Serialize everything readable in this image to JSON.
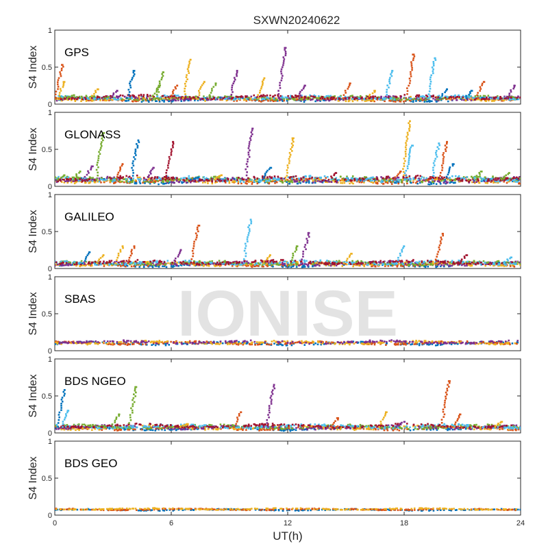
{
  "figure": {
    "title": "SXWN20240622",
    "xlabel": "UT(h)",
    "watermark": "IONISE",
    "colors": [
      "#0072BD",
      "#D95319",
      "#EDB120",
      "#7E2F8E",
      "#77AC30",
      "#4DBEEE",
      "#A2142F"
    ],
    "watermark_color": "#e3e3e3"
  },
  "chart_data": [
    {
      "type": "scatter",
      "panel_label": "GPS",
      "ylabel": "S4 Index",
      "xlim": [
        0,
        24
      ],
      "ylim": [
        0,
        1
      ],
      "yticks": [
        "0",
        "0.5",
        "1"
      ],
      "xticks": [],
      "baseline": 0.08,
      "noise": 0.03,
      "series_count": 7,
      "spikes": [
        {
          "x": 0.4,
          "y": 0.53,
          "c": 1
        },
        {
          "x": 0.5,
          "y": 0.3,
          "c": 2
        },
        {
          "x": 1.0,
          "y": 0.12,
          "c": 4
        },
        {
          "x": 2.2,
          "y": 0.2,
          "c": 2
        },
        {
          "x": 3.2,
          "y": 0.18,
          "c": 3
        },
        {
          "x": 4.1,
          "y": 0.45,
          "c": 0
        },
        {
          "x": 5.4,
          "y": 0.25,
          "c": 4
        },
        {
          "x": 5.6,
          "y": 0.43,
          "c": 4
        },
        {
          "x": 6.3,
          "y": 0.25,
          "c": 1
        },
        {
          "x": 7.0,
          "y": 0.6,
          "c": 2
        },
        {
          "x": 7.7,
          "y": 0.3,
          "c": 2
        },
        {
          "x": 8.3,
          "y": 0.28,
          "c": 4
        },
        {
          "x": 9.4,
          "y": 0.45,
          "c": 3
        },
        {
          "x": 10.8,
          "y": 0.35,
          "c": 2
        },
        {
          "x": 11.9,
          "y": 0.76,
          "c": 3
        },
        {
          "x": 12.9,
          "y": 0.25,
          "c": 3
        },
        {
          "x": 15.2,
          "y": 0.28,
          "c": 1
        },
        {
          "x": 16.5,
          "y": 0.18,
          "c": 2
        },
        {
          "x": 17.4,
          "y": 0.45,
          "c": 5
        },
        {
          "x": 18.5,
          "y": 0.67,
          "c": 1
        },
        {
          "x": 19.6,
          "y": 0.62,
          "c": 5
        },
        {
          "x": 20.2,
          "y": 0.2,
          "c": 0
        },
        {
          "x": 21.5,
          "y": 0.18,
          "c": 0
        },
        {
          "x": 22.1,
          "y": 0.3,
          "c": 1
        },
        {
          "x": 23.7,
          "y": 0.25,
          "c": 3
        }
      ]
    },
    {
      "type": "scatter",
      "panel_label": "GLONASS",
      "ylabel": "S4 Index",
      "xlim": [
        0,
        24
      ],
      "ylim": [
        0,
        1
      ],
      "yticks": [
        "0",
        "0.5",
        "1"
      ],
      "xticks": [],
      "baseline": 0.09,
      "noise": 0.04,
      "series_count": 7,
      "spikes": [
        {
          "x": 0.5,
          "y": 0.15,
          "c": 4
        },
        {
          "x": 1.3,
          "y": 0.2,
          "c": 4
        },
        {
          "x": 1.9,
          "y": 0.27,
          "c": 3
        },
        {
          "x": 2.5,
          "y": 0.72,
          "c": 4
        },
        {
          "x": 3.5,
          "y": 0.3,
          "c": 1
        },
        {
          "x": 4.3,
          "y": 0.62,
          "c": 0
        },
        {
          "x": 5.1,
          "y": 0.25,
          "c": 3
        },
        {
          "x": 6.1,
          "y": 0.6,
          "c": 6
        },
        {
          "x": 7.4,
          "y": 0.12,
          "c": 0
        },
        {
          "x": 8.6,
          "y": 0.15,
          "c": 2
        },
        {
          "x": 10.2,
          "y": 0.78,
          "c": 3
        },
        {
          "x": 11.1,
          "y": 0.25,
          "c": 0
        },
        {
          "x": 12.3,
          "y": 0.65,
          "c": 2
        },
        {
          "x": 14.5,
          "y": 0.18,
          "c": 6
        },
        {
          "x": 16.4,
          "y": 0.12,
          "c": 5
        },
        {
          "x": 17.8,
          "y": 0.2,
          "c": 1
        },
        {
          "x": 18.3,
          "y": 0.88,
          "c": 2
        },
        {
          "x": 18.4,
          "y": 0.55,
          "c": 5
        },
        {
          "x": 19.8,
          "y": 0.58,
          "c": 5
        },
        {
          "x": 20.2,
          "y": 0.6,
          "c": 1
        },
        {
          "x": 20.5,
          "y": 0.3,
          "c": 0
        },
        {
          "x": 22.0,
          "y": 0.2,
          "c": 4
        },
        {
          "x": 23.4,
          "y": 0.18,
          "c": 4
        }
      ]
    },
    {
      "type": "scatter",
      "panel_label": "GALILEO",
      "ylabel": "S4 Index",
      "xlim": [
        0,
        24
      ],
      "ylim": [
        0,
        1
      ],
      "yticks": [
        "0",
        "0.5",
        "1"
      ],
      "xticks": [],
      "baseline": 0.07,
      "noise": 0.03,
      "series_count": 7,
      "spikes": [
        {
          "x": 1.8,
          "y": 0.22,
          "c": 0
        },
        {
          "x": 2.5,
          "y": 0.18,
          "c": 2
        },
        {
          "x": 3.5,
          "y": 0.3,
          "c": 2
        },
        {
          "x": 4.1,
          "y": 0.3,
          "c": 1
        },
        {
          "x": 6.5,
          "y": 0.25,
          "c": 3
        },
        {
          "x": 7.4,
          "y": 0.58,
          "c": 1
        },
        {
          "x": 10.1,
          "y": 0.66,
          "c": 5
        },
        {
          "x": 11.1,
          "y": 0.18,
          "c": 2
        },
        {
          "x": 12.5,
          "y": 0.3,
          "c": 4
        },
        {
          "x": 13.1,
          "y": 0.48,
          "c": 3
        },
        {
          "x": 15.3,
          "y": 0.2,
          "c": 2
        },
        {
          "x": 18.0,
          "y": 0.3,
          "c": 5
        },
        {
          "x": 20.0,
          "y": 0.47,
          "c": 1
        },
        {
          "x": 21.2,
          "y": 0.18,
          "c": 6
        },
        {
          "x": 23.5,
          "y": 0.15,
          "c": 5
        }
      ]
    },
    {
      "type": "scatter",
      "panel_label": "SBAS",
      "ylabel": "S4 Index",
      "xlim": [
        0,
        24
      ],
      "ylim": [
        0,
        1
      ],
      "yticks": [
        "0",
        "0.5",
        "1"
      ],
      "xticks": [],
      "baseline": 0.11,
      "noise": 0.025,
      "series_count": 4,
      "spikes": []
    },
    {
      "type": "scatter",
      "panel_label": "BDS NGEO",
      "ylabel": "S4 Index",
      "xlim": [
        0,
        24
      ],
      "ylim": [
        0,
        1
      ],
      "yticks": [
        "0",
        "0.5",
        "1"
      ],
      "xticks": [],
      "baseline": 0.08,
      "noise": 0.03,
      "series_count": 7,
      "spikes": [
        {
          "x": 0.5,
          "y": 0.58,
          "c": 0
        },
        {
          "x": 0.7,
          "y": 0.3,
          "c": 5
        },
        {
          "x": 3.3,
          "y": 0.25,
          "c": 4
        },
        {
          "x": 4.2,
          "y": 0.62,
          "c": 4
        },
        {
          "x": 6.8,
          "y": 0.12,
          "c": 2
        },
        {
          "x": 9.6,
          "y": 0.28,
          "c": 1
        },
        {
          "x": 11.3,
          "y": 0.65,
          "c": 3
        },
        {
          "x": 14.6,
          "y": 0.2,
          "c": 1
        },
        {
          "x": 17.1,
          "y": 0.28,
          "c": 2
        },
        {
          "x": 18.0,
          "y": 0.15,
          "c": 3
        },
        {
          "x": 20.3,
          "y": 0.7,
          "c": 1
        },
        {
          "x": 20.9,
          "y": 0.25,
          "c": 1
        },
        {
          "x": 23.0,
          "y": 0.15,
          "c": 2
        }
      ]
    },
    {
      "type": "scatter",
      "panel_label": "BDS GEO",
      "ylabel": "S4 Index",
      "xlim": [
        0,
        24
      ],
      "ylim": [
        0,
        1
      ],
      "yticks": [
        "0",
        "0.5",
        "1"
      ],
      "xticks": [
        "0",
        "6",
        "12",
        "18",
        "24"
      ],
      "baseline": 0.08,
      "noise": 0.012,
      "series_count": 3,
      "spikes": []
    }
  ]
}
